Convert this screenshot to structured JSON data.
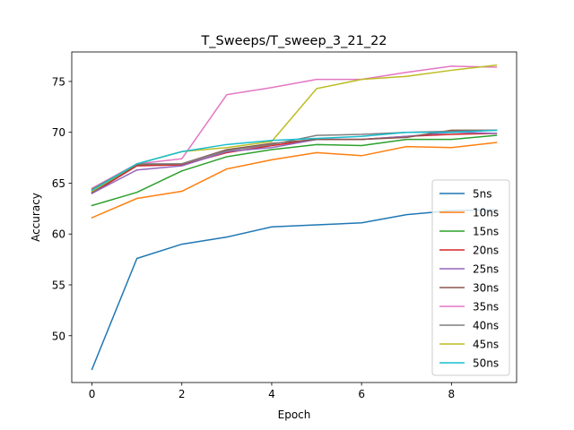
{
  "chart_data": {
    "type": "line",
    "title": "T_Sweeps/T_sweep_3_21_22",
    "xlabel": "Epoch",
    "ylabel": "Accuracy",
    "xlim": [
      -0.45,
      9.45
    ],
    "ylim": [
      45.4,
      77.9
    ],
    "xticks": [
      0,
      2,
      4,
      6,
      8
    ],
    "yticks": [
      50,
      55,
      60,
      65,
      70,
      75
    ],
    "grid": false,
    "legend_position": "lower right",
    "x": [
      0,
      1,
      2,
      3,
      4,
      5,
      6,
      7,
      8,
      9
    ],
    "series": [
      {
        "name": "5ns",
        "color": "#1f77b4",
        "values": [
          46.7,
          57.6,
          59.0,
          59.7,
          60.7,
          60.9,
          61.1,
          61.9,
          62.3,
          62.4
        ]
      },
      {
        "name": "10ns",
        "color": "#ff7f0e",
        "values": [
          61.6,
          63.5,
          64.2,
          66.4,
          67.3,
          68.0,
          67.7,
          68.6,
          68.5,
          69.0
        ]
      },
      {
        "name": "15ns",
        "color": "#2ca02c",
        "values": [
          62.8,
          64.1,
          66.2,
          67.6,
          68.3,
          68.8,
          68.7,
          69.3,
          69.3,
          69.7
        ]
      },
      {
        "name": "20ns",
        "color": "#d62728",
        "values": [
          64.0,
          66.7,
          66.8,
          68.0,
          68.7,
          69.3,
          69.3,
          69.6,
          69.8,
          69.9
        ]
      },
      {
        "name": "25ns",
        "color": "#9467bd",
        "values": [
          64.0,
          66.3,
          66.7,
          68.1,
          68.5,
          69.3,
          69.3,
          69.6,
          70.0,
          69.9
        ]
      },
      {
        "name": "30ns",
        "color": "#8c564b",
        "values": [
          64.1,
          66.8,
          66.9,
          68.3,
          68.9,
          69.3,
          69.3,
          69.5,
          70.2,
          70.2
        ]
      },
      {
        "name": "35ns",
        "color": "#e377c2",
        "values": [
          64.5,
          66.9,
          67.4,
          73.7,
          74.4,
          75.2,
          75.2,
          75.9,
          76.5,
          76.4
        ]
      },
      {
        "name": "40ns",
        "color": "#7f7f7f",
        "values": [
          64.4,
          66.9,
          66.9,
          68.2,
          68.8,
          69.7,
          69.8,
          70.0,
          70.1,
          70.2
        ]
      },
      {
        "name": "45ns",
        "color": "#bcbd22",
        "values": [
          64.2,
          66.9,
          68.1,
          68.5,
          69.1,
          74.3,
          75.2,
          75.5,
          76.1,
          76.6
        ]
      },
      {
        "name": "50ns",
        "color": "#17becf",
        "values": [
          64.3,
          66.9,
          68.1,
          68.8,
          69.2,
          69.4,
          69.6,
          70.0,
          70.0,
          70.2
        ]
      }
    ]
  }
}
